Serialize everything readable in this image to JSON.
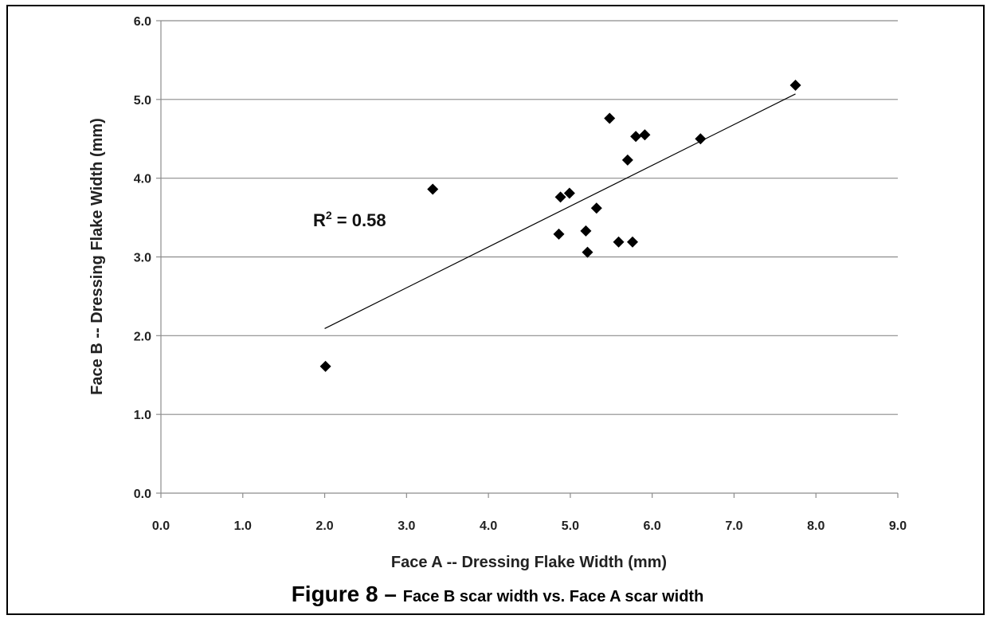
{
  "chart_data": {
    "type": "scatter",
    "title": "",
    "xlabel": "Face A --  Dressing Flake Width (mm)",
    "ylabel": "Face B -- Dressing Flake Width (mm)",
    "xlim": [
      0,
      9
    ],
    "ylim": [
      0,
      6
    ],
    "x_ticks": [
      "0.0",
      "1.0",
      "2.0",
      "3.0",
      "4.0",
      "5.0",
      "6.0",
      "7.0",
      "8.0",
      "9.0"
    ],
    "y_ticks": [
      "0.0",
      "1.0",
      "2.0",
      "3.0",
      "4.0",
      "5.0",
      "6.0"
    ],
    "grid": "horizontal",
    "marker": "diamond",
    "marker_color": "#000000",
    "trendline": {
      "type": "linear",
      "from": [
        2.0,
        2.09
      ],
      "to": [
        7.75,
        5.07
      ]
    },
    "annotation": {
      "prefix": "R",
      "superscript": "2",
      "suffix": " = 0.58"
    },
    "points": [
      {
        "x": 2.01,
        "y": 1.61
      },
      {
        "x": 3.32,
        "y": 3.86
      },
      {
        "x": 4.86,
        "y": 3.29
      },
      {
        "x": 4.88,
        "y": 3.76
      },
      {
        "x": 4.99,
        "y": 3.81
      },
      {
        "x": 5.19,
        "y": 3.33
      },
      {
        "x": 5.21,
        "y": 3.06
      },
      {
        "x": 5.32,
        "y": 3.62
      },
      {
        "x": 5.48,
        "y": 4.76
      },
      {
        "x": 5.59,
        "y": 3.19
      },
      {
        "x": 5.7,
        "y": 4.23
      },
      {
        "x": 5.76,
        "y": 3.19
      },
      {
        "x": 5.8,
        "y": 4.53
      },
      {
        "x": 5.91,
        "y": 4.55
      },
      {
        "x": 6.59,
        "y": 4.5
      },
      {
        "x": 7.75,
        "y": 5.18
      }
    ]
  },
  "caption": {
    "main": "Figure 8",
    "dash": " – ",
    "sub": "Face B scar width vs. Face A scar width"
  }
}
